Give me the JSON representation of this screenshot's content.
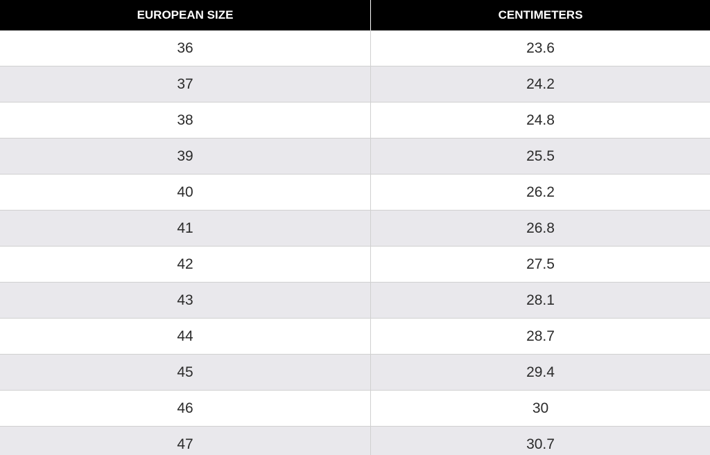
{
  "table": {
    "headers": [
      "EUROPEAN SIZE",
      "CENTIMETERS"
    ],
    "rows": [
      [
        "36",
        "23.6"
      ],
      [
        "37",
        "24.2"
      ],
      [
        "38",
        "24.8"
      ],
      [
        "39",
        "25.5"
      ],
      [
        "40",
        "26.2"
      ],
      [
        "41",
        "26.8"
      ],
      [
        "42",
        "27.5"
      ],
      [
        "43",
        "28.1"
      ],
      [
        "44",
        "28.7"
      ],
      [
        "45",
        "29.4"
      ],
      [
        "46",
        "30"
      ],
      [
        "47",
        "30.7"
      ]
    ]
  }
}
